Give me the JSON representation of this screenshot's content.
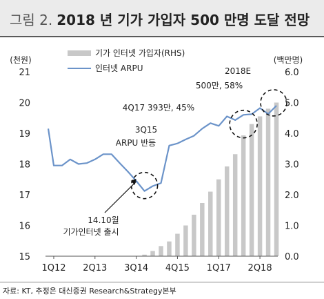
{
  "figure": {
    "label": "그림 2.",
    "title": "2018 년 기가 가입자 500 만명 도달 전망",
    "source": "자료: KT, 추정은 대신증권 Research&Strategy본부"
  },
  "chart_data": {
    "type": "bar+line",
    "left_unit": "(천원)",
    "right_unit": "(백만명)",
    "x_ticks": [
      "1Q12",
      "2Q13",
      "3Q14",
      "4Q15",
      "1Q17",
      "2Q18"
    ],
    "legend": [
      {
        "name": "기가 인터넷 가입자(RHS)",
        "kind": "bar",
        "color": "#c8c8c8"
      },
      {
        "name": "인터넷 ARPU",
        "kind": "line",
        "color": "#6b93c9"
      }
    ],
    "left_axis": {
      "min": 15,
      "max": 21,
      "ticks": [
        15,
        16,
        17,
        18,
        19,
        20,
        21
      ]
    },
    "right_axis": {
      "min": 0.0,
      "max": 6.0,
      "ticks": [
        "0.0",
        "1.0",
        "2.0",
        "3.0",
        "4.0",
        "5.0",
        "6.0"
      ]
    },
    "months": [
      "2012-01",
      "2012-02",
      "2012-03",
      "2012-04",
      "2012-05",
      "2012-06",
      "2012-07",
      "2012-08",
      "2012-09",
      "2012-10",
      "2012-11",
      "2012-12",
      "2013-01",
      "2013-02",
      "2013-03",
      "2013-04",
      "2013-05",
      "2013-06",
      "2013-07",
      "2013-08",
      "2013-09",
      "2013-10",
      "2013-11",
      "2013-12",
      "2014-01",
      "2014-02",
      "2014-03",
      "2014-04",
      "2014-05",
      "2014-06",
      "2014-07",
      "2014-08",
      "2014-09",
      "2014-10",
      "2014-11",
      "2014-12",
      "2015-01",
      "2015-02",
      "2015-03",
      "2015-04",
      "2015-05",
      "2015-06",
      "2015-07",
      "2015-08",
      "2015-09",
      "2015-10",
      "2015-11",
      "2015-12",
      "2016-01",
      "2016-02",
      "2016-03",
      "2016-04",
      "2016-05",
      "2016-06",
      "2016-07",
      "2016-08",
      "2016-09",
      "2016-10",
      "2016-11",
      "2016-12",
      "2017-01",
      "2017-02",
      "2017-03",
      "2017-04",
      "2017-05",
      "2017-06",
      "2017-07",
      "2017-08",
      "2017-09",
      "2017-10",
      "2017-11",
      "2017-12",
      "2018-01",
      "2018-02",
      "2018-03",
      "2018-04",
      "2018-05",
      "2018-06",
      "2018-07",
      "2018-08",
      "2018-09",
      "2018-10",
      "2018-11",
      "2018-12"
    ],
    "series": [
      {
        "name": "기가 인터넷 가입자(RHS)",
        "axis": "right",
        "x": [
          "2014-12",
          "2015-03",
          "2015-06",
          "2015-09",
          "2015-12",
          "2016-03",
          "2016-06",
          "2016-09",
          "2016-12",
          "2017-03",
          "2017-06",
          "2017-09",
          "2017-12",
          "2018-03",
          "2018-06",
          "2018-09",
          "2018-12"
        ],
        "values": [
          0.05,
          0.17,
          0.33,
          0.48,
          0.73,
          1.0,
          1.35,
          1.73,
          2.1,
          2.5,
          2.92,
          3.32,
          3.93,
          4.3,
          4.55,
          4.8,
          5.0
        ]
      },
      {
        "name": "인터넷 ARPU",
        "axis": "left",
        "x": [
          "2012-01",
          "2012-03",
          "2012-06",
          "2012-09",
          "2012-12",
          "2013-03",
          "2013-06",
          "2013-09",
          "2013-12",
          "2014-03",
          "2014-06",
          "2014-09",
          "2014-12",
          "2015-03",
          "2015-06",
          "2015-09",
          "2015-12",
          "2016-03",
          "2016-06",
          "2016-09",
          "2016-12",
          "2017-03",
          "2017-06",
          "2017-09",
          "2017-12",
          "2018-03",
          "2018-06",
          "2018-09",
          "2018-12"
        ],
        "values": [
          19.15,
          17.95,
          17.95,
          18.15,
          18.0,
          18.03,
          18.15,
          18.32,
          18.32,
          18.03,
          17.75,
          17.45,
          17.12,
          17.28,
          17.38,
          18.6,
          18.67,
          18.8,
          18.92,
          19.15,
          19.33,
          19.24,
          19.55,
          19.43,
          19.6,
          19.62,
          19.82,
          19.63,
          19.9
        ]
      }
    ],
    "annotations": [
      {
        "text": "14.10월",
        "text2": "기가인터넷 출시",
        "circle_x": "2014-12",
        "circle_y": 17.3,
        "arrow_to_x": "2014-09",
        "arrow_to_y": 17.52
      },
      {
        "text": "3Q15",
        "text2": "ARPU 반등",
        "circle_x": "2015-09",
        "circle_y": 17.1
      },
      {
        "text": "4Q17 393만, 45%",
        "circle_x": "2017-12",
        "circle_y": 19.3
      },
      {
        "text": "2018E",
        "text2": "500만, 58%",
        "circle_x": "2018-12",
        "circle_y": 19.9
      }
    ]
  }
}
